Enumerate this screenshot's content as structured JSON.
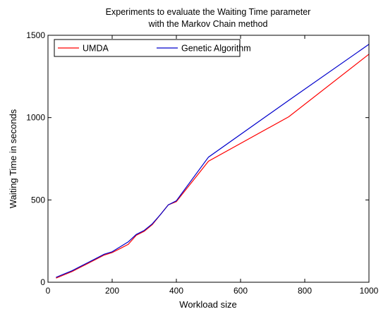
{
  "chart_data": {
    "type": "line",
    "title_lines": [
      "Experiments to evaluate the Waiting Time parameter",
      "with the Markov Chain method"
    ],
    "xlabel": "Workload size",
    "ylabel": "Waiting Time in seconds",
    "xlim": [
      0,
      1000
    ],
    "ylim": [
      0,
      1500
    ],
    "xticks": [
      0,
      200,
      400,
      600,
      800,
      1000
    ],
    "yticks": [
      0,
      500,
      1000,
      1500
    ],
    "grid": false,
    "legend_position": "top-left",
    "series": [
      {
        "name": "UMDA",
        "color": "#ff0000",
        "x": [
          25,
          50,
          75,
          100,
          125,
          150,
          175,
          200,
          225,
          250,
          275,
          300,
          325,
          350,
          375,
          400,
          500,
          750,
          1000
        ],
        "y": [
          25,
          45,
          65,
          90,
          115,
          140,
          165,
          180,
          205,
          230,
          285,
          310,
          350,
          410,
          470,
          490,
          735,
          1005,
          1385
        ]
      },
      {
        "name": "Genetic Algorithm",
        "color": "#0000cc",
        "x": [
          25,
          50,
          75,
          100,
          125,
          150,
          175,
          200,
          225,
          250,
          275,
          300,
          325,
          350,
          375,
          400,
          500,
          750,
          1000
        ],
        "y": [
          30,
          50,
          70,
          95,
          120,
          145,
          170,
          185,
          215,
          245,
          290,
          315,
          355,
          410,
          470,
          495,
          760,
          1105,
          1445
        ]
      }
    ]
  }
}
